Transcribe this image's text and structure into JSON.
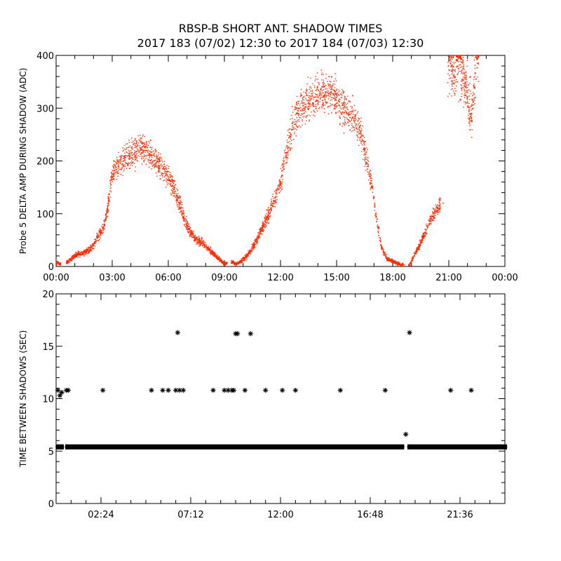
{
  "title": {
    "line1": "RBSP-B SHORT ANT. SHADOW TIMES",
    "line2": "2017 183 (07/02) 12:30 to 2017 184 (07/03) 12:30"
  },
  "colors": {
    "top_points": "#ff2a00",
    "axes": "#000000",
    "bottom_points": "#000000"
  },
  "chart_data": [
    {
      "type": "scatter",
      "ylabel": "Probe 5 DELTA AMP DURING SHADOW (ADC)",
      "xlabel": "",
      "xlim": [
        0,
        24
      ],
      "ylim": [
        0,
        400
      ],
      "x_unit": "hours",
      "x_ticks": [
        0,
        3,
        6,
        9,
        12,
        15,
        18,
        21,
        24
      ],
      "x_tick_labels": [
        "00:00",
        "03:00",
        "06:00",
        "09:00",
        "12:00",
        "15:00",
        "18:00",
        "21:00",
        "00:00"
      ],
      "y_ticks": [
        0,
        100,
        200,
        300,
        400
      ],
      "y_tick_labels": [
        "0",
        "100",
        "200",
        "300",
        "400"
      ],
      "series": [
        {
          "x": [
            0.0,
            0.1,
            0.2,
            0.6,
            0.8,
            1.0,
            1.2,
            1.4,
            1.6,
            1.8,
            2.0,
            2.2,
            2.4,
            2.6,
            2.8,
            3.0,
            3.3,
            3.6,
            3.9,
            4.2,
            4.5,
            4.8,
            5.1,
            5.4,
            5.7,
            6.0,
            6.3,
            6.6,
            6.9,
            7.2,
            7.5,
            7.8,
            8.1,
            8.4,
            8.7,
            9.0,
            9.4,
            9.6,
            9.9,
            10.2,
            10.5,
            10.8,
            11.1,
            11.4,
            11.7,
            12.0,
            12.3,
            12.6,
            12.9,
            13.2,
            13.5,
            13.8,
            14.1,
            14.4,
            14.7,
            15.0,
            15.3,
            15.6,
            15.9,
            16.2,
            16.5,
            16.8,
            17.1,
            17.4,
            17.7,
            18.0,
            18.3,
            18.6,
            18.9,
            19.2,
            19.5,
            19.8,
            20.1,
            20.4,
            20.7,
            21.0,
            21.3,
            21.6,
            21.9,
            22.2,
            22.5
          ],
          "y": [
            5,
            8,
            4,
            8,
            14,
            20,
            24,
            25,
            28,
            32,
            40,
            55,
            65,
            80,
            120,
            175,
            190,
            200,
            210,
            215,
            220,
            220,
            210,
            200,
            185,
            170,
            150,
            120,
            85,
            65,
            50,
            45,
            35,
            25,
            15,
            5,
            8,
            5,
            10,
            20,
            35,
            55,
            80,
            100,
            130,
            160,
            210,
            260,
            290,
            305,
            315,
            320,
            325,
            330,
            330,
            320,
            305,
            290,
            280,
            260,
            220,
            170,
            100,
            35,
            15,
            10,
            5,
            3,
            2,
            25,
            45,
            70,
            95,
            110,
            120,
            400,
            360,
            400,
            340,
            280,
            400
          ]
        }
      ]
    },
    {
      "type": "scatter",
      "ylabel": "TIME BETWEEN SHADOWS (SEC)",
      "xlabel": "",
      "xlim": [
        0,
        24
      ],
      "ylim": [
        0,
        20
      ],
      "x_unit": "hours",
      "x_ticks": [
        2.4,
        7.2,
        12.0,
        16.8,
        21.6
      ],
      "x_tick_labels": [
        "02:24",
        "07:12",
        "12:00",
        "16:48",
        "21:36"
      ],
      "y_ticks": [
        0,
        5,
        10,
        15,
        20
      ],
      "y_tick_labels": [
        "0",
        "5",
        "10",
        "15",
        "20"
      ],
      "series": [
        {
          "x": [
            0.1,
            0.2,
            0.3,
            0.55,
            0.65,
            2.5,
            5.1,
            5.7,
            6.0,
            6.4,
            6.6,
            6.8,
            6.5,
            8.4,
            9.0,
            9.2,
            9.4,
            9.6,
            9.5,
            9.7,
            10.1,
            10.4,
            11.2,
            12.1,
            12.8,
            15.2,
            17.6,
            18.7,
            18.9,
            21.1,
            22.2
          ],
          "y": [
            10.8,
            10.3,
            10.6,
            10.8,
            10.8,
            10.8,
            10.8,
            10.8,
            10.8,
            10.8,
            10.8,
            10.8,
            16.3,
            10.8,
            10.8,
            10.8,
            10.8,
            16.2,
            10.8,
            16.2,
            10.8,
            16.2,
            10.8,
            10.8,
            10.8,
            10.8,
            10.8,
            6.6,
            16.3,
            10.8,
            10.8
          ]
        },
        {
          "band_y": 5.4,
          "segments": [
            [
              0.1,
              0.3
            ],
            [
              0.6,
              18.5
            ],
            [
              18.9,
              24
            ]
          ]
        }
      ]
    }
  ]
}
